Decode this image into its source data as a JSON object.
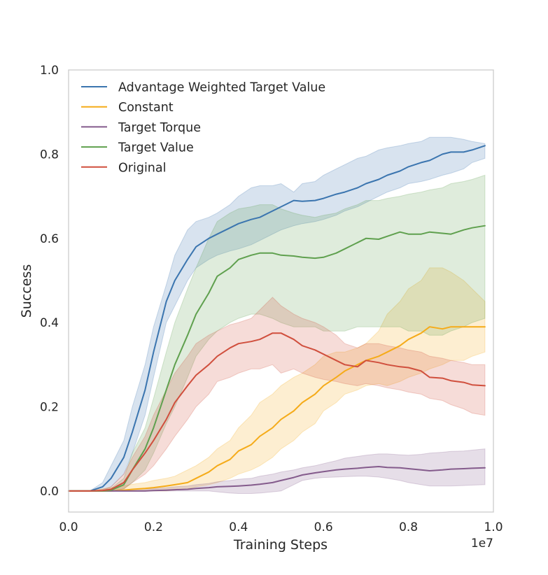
{
  "chart_data": {
    "type": "line",
    "title": "",
    "xlabel": "Training Steps",
    "ylabel": "Success",
    "x_offset_label": "1e7",
    "xlim": [
      0.0,
      1.0
    ],
    "ylim": [
      -0.05,
      1.0
    ],
    "x_scale": 10000000,
    "grid": false,
    "legend_position": "top-left",
    "x_ticks": [
      "0.0",
      "0.2",
      "0.4",
      "0.6",
      "0.8",
      "1.0"
    ],
    "y_ticks": [
      "0.0",
      "0.2",
      "0.4",
      "0.6",
      "0.8",
      "1.0"
    ],
    "x": [
      0.0,
      0.05,
      0.08,
      0.1,
      0.13,
      0.15,
      0.18,
      0.2,
      0.23,
      0.25,
      0.28,
      0.3,
      0.33,
      0.35,
      0.38,
      0.4,
      0.43,
      0.45,
      0.48,
      0.5,
      0.53,
      0.55,
      0.58,
      0.6,
      0.63,
      0.65,
      0.68,
      0.7,
      0.73,
      0.75,
      0.78,
      0.8,
      0.83,
      0.85,
      0.88,
      0.9,
      0.93,
      0.95,
      0.98
    ],
    "series": [
      {
        "name": "Advantage Weighted Target Value",
        "color": "#3b75af",
        "values": [
          0.0,
          0.0,
          0.01,
          0.03,
          0.08,
          0.14,
          0.24,
          0.33,
          0.45,
          0.5,
          0.55,
          0.58,
          0.6,
          0.61,
          0.625,
          0.635,
          0.645,
          0.65,
          0.665,
          0.675,
          0.69,
          0.688,
          0.69,
          0.695,
          0.705,
          0.71,
          0.72,
          0.73,
          0.74,
          0.75,
          0.76,
          0.77,
          0.78,
          0.785,
          0.8,
          0.805,
          0.805,
          0.81,
          0.82
        ],
        "lower": [
          0.0,
          0.0,
          0.0,
          0.01,
          0.04,
          0.09,
          0.18,
          0.27,
          0.4,
          0.44,
          0.5,
          0.53,
          0.55,
          0.56,
          0.57,
          0.575,
          0.585,
          0.595,
          0.61,
          0.62,
          0.63,
          0.635,
          0.64,
          0.645,
          0.655,
          0.665,
          0.675,
          0.685,
          0.7,
          0.71,
          0.72,
          0.73,
          0.735,
          0.74,
          0.75,
          0.755,
          0.765,
          0.78,
          0.79
        ],
        "upper": [
          0.0,
          0.0,
          0.02,
          0.06,
          0.12,
          0.2,
          0.3,
          0.39,
          0.49,
          0.56,
          0.62,
          0.64,
          0.65,
          0.66,
          0.68,
          0.7,
          0.72,
          0.725,
          0.725,
          0.73,
          0.71,
          0.73,
          0.735,
          0.75,
          0.765,
          0.775,
          0.79,
          0.795,
          0.81,
          0.815,
          0.82,
          0.825,
          0.83,
          0.84,
          0.84,
          0.84,
          0.835,
          0.83,
          0.825
        ]
      },
      {
        "name": "Constant",
        "color": "#f5ab19",
        "values": [
          0.0,
          0.0,
          0.0,
          0.0,
          0.002,
          0.004,
          0.006,
          0.008,
          0.012,
          0.015,
          0.02,
          0.03,
          0.045,
          0.06,
          0.075,
          0.095,
          0.11,
          0.13,
          0.15,
          0.17,
          0.19,
          0.21,
          0.23,
          0.25,
          0.27,
          0.285,
          0.3,
          0.31,
          0.32,
          0.33,
          0.345,
          0.36,
          0.375,
          0.39,
          0.385,
          0.39,
          0.39,
          0.39,
          0.39
        ],
        "lower": [
          0.0,
          0.0,
          0.0,
          0.0,
          0.0,
          0.0,
          0.0,
          0.0,
          0.0,
          0.002,
          0.005,
          0.01,
          0.015,
          0.02,
          0.03,
          0.04,
          0.05,
          0.06,
          0.08,
          0.1,
          0.12,
          0.14,
          0.16,
          0.19,
          0.21,
          0.23,
          0.24,
          0.25,
          0.255,
          0.25,
          0.26,
          0.27,
          0.28,
          0.29,
          0.3,
          0.31,
          0.31,
          0.32,
          0.33
        ],
        "upper": [
          0.0,
          0.0,
          0.005,
          0.008,
          0.012,
          0.016,
          0.02,
          0.025,
          0.03,
          0.035,
          0.05,
          0.06,
          0.08,
          0.1,
          0.12,
          0.15,
          0.18,
          0.21,
          0.23,
          0.25,
          0.27,
          0.28,
          0.3,
          0.32,
          0.33,
          0.33,
          0.34,
          0.35,
          0.38,
          0.42,
          0.45,
          0.48,
          0.5,
          0.53,
          0.53,
          0.52,
          0.5,
          0.48,
          0.45
        ]
      },
      {
        "name": "Target Torque",
        "color": "#845b8c",
        "values": [
          0.0,
          0.0,
          0.0,
          0.0,
          0.0,
          0.0,
          0.0,
          0.001,
          0.002,
          0.003,
          0.004,
          0.006,
          0.008,
          0.01,
          0.011,
          0.012,
          0.014,
          0.016,
          0.02,
          0.025,
          0.032,
          0.038,
          0.043,
          0.046,
          0.05,
          0.052,
          0.054,
          0.056,
          0.058,
          0.056,
          0.055,
          0.053,
          0.05,
          0.048,
          0.05,
          0.052,
          0.053,
          0.054,
          0.055
        ],
        "lower": [
          0.0,
          0.0,
          0.0,
          0.0,
          0.0,
          0.0,
          0.0,
          0.0,
          0.0,
          0.0,
          0.0,
          0.0,
          0.0,
          -0.002,
          -0.005,
          -0.006,
          -0.006,
          -0.005,
          -0.002,
          0.0,
          0.015,
          0.025,
          0.03,
          0.032,
          0.033,
          0.034,
          0.035,
          0.035,
          0.033,
          0.03,
          0.025,
          0.02,
          0.015,
          0.012,
          0.012,
          0.012,
          0.013,
          0.014,
          0.015
        ],
        "upper": [
          0.0,
          0.0,
          0.0,
          0.002,
          0.003,
          0.004,
          0.005,
          0.006,
          0.008,
          0.01,
          0.012,
          0.015,
          0.018,
          0.022,
          0.025,
          0.028,
          0.03,
          0.035,
          0.04,
          0.045,
          0.05,
          0.055,
          0.06,
          0.065,
          0.072,
          0.078,
          0.082,
          0.085,
          0.088,
          0.088,
          0.086,
          0.085,
          0.087,
          0.09,
          0.092,
          0.094,
          0.095,
          0.097,
          0.1
        ]
      },
      {
        "name": "Target Value",
        "color": "#5fa04e",
        "values": [
          0.0,
          0.0,
          0.0,
          0.002,
          0.015,
          0.05,
          0.1,
          0.15,
          0.24,
          0.3,
          0.37,
          0.42,
          0.47,
          0.51,
          0.53,
          0.55,
          0.56,
          0.565,
          0.565,
          0.56,
          0.558,
          0.555,
          0.553,
          0.555,
          0.565,
          0.575,
          0.59,
          0.6,
          0.598,
          0.605,
          0.615,
          0.61,
          0.61,
          0.615,
          0.612,
          0.61,
          0.62,
          0.625,
          0.63
        ],
        "lower": [
          0.0,
          0.0,
          0.0,
          0.0,
          0.005,
          0.02,
          0.05,
          0.09,
          0.16,
          0.2,
          0.27,
          0.32,
          0.36,
          0.38,
          0.4,
          0.41,
          0.42,
          0.42,
          0.41,
          0.4,
          0.39,
          0.39,
          0.39,
          0.38,
          0.38,
          0.38,
          0.39,
          0.39,
          0.39,
          0.39,
          0.39,
          0.38,
          0.38,
          0.37,
          0.37,
          0.38,
          0.39,
          0.4,
          0.41
        ],
        "upper": [
          0.0,
          0.0,
          0.002,
          0.006,
          0.03,
          0.09,
          0.15,
          0.22,
          0.33,
          0.4,
          0.48,
          0.53,
          0.6,
          0.64,
          0.66,
          0.67,
          0.675,
          0.68,
          0.68,
          0.67,
          0.66,
          0.655,
          0.65,
          0.655,
          0.66,
          0.67,
          0.68,
          0.69,
          0.69,
          0.695,
          0.7,
          0.705,
          0.71,
          0.715,
          0.72,
          0.73,
          0.735,
          0.74,
          0.75
        ]
      },
      {
        "name": "Original",
        "color": "#d04f3d",
        "values": [
          0.0,
          0.0,
          0.001,
          0.004,
          0.02,
          0.05,
          0.09,
          0.12,
          0.17,
          0.21,
          0.25,
          0.275,
          0.3,
          0.32,
          0.34,
          0.35,
          0.355,
          0.36,
          0.375,
          0.375,
          0.36,
          0.345,
          0.335,
          0.325,
          0.31,
          0.3,
          0.295,
          0.31,
          0.305,
          0.3,
          0.295,
          0.293,
          0.285,
          0.27,
          0.268,
          0.262,
          0.258,
          0.252,
          0.25
        ],
        "lower": [
          0.0,
          0.0,
          0.0,
          0.0,
          0.005,
          0.02,
          0.04,
          0.06,
          0.1,
          0.13,
          0.17,
          0.2,
          0.23,
          0.26,
          0.27,
          0.28,
          0.29,
          0.29,
          0.3,
          0.28,
          0.29,
          0.28,
          0.27,
          0.265,
          0.26,
          0.255,
          0.25,
          0.255,
          0.25,
          0.245,
          0.24,
          0.235,
          0.23,
          0.22,
          0.215,
          0.205,
          0.195,
          0.185,
          0.18
        ],
        "upper": [
          0.0,
          0.0,
          0.004,
          0.01,
          0.04,
          0.08,
          0.13,
          0.18,
          0.24,
          0.28,
          0.32,
          0.35,
          0.37,
          0.38,
          0.395,
          0.4,
          0.41,
          0.43,
          0.46,
          0.44,
          0.42,
          0.41,
          0.4,
          0.39,
          0.37,
          0.35,
          0.34,
          0.35,
          0.35,
          0.345,
          0.34,
          0.335,
          0.33,
          0.32,
          0.315,
          0.31,
          0.305,
          0.3,
          0.3
        ]
      }
    ]
  }
}
